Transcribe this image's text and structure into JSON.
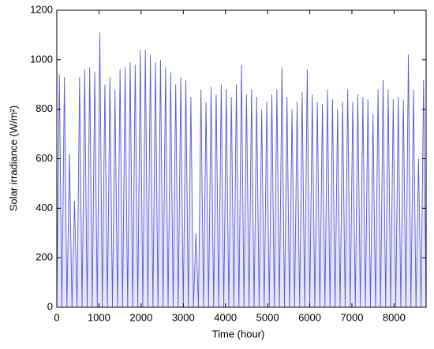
{
  "chart_data": {
    "type": "line",
    "xlabel": "Time (hour)",
    "ylabel": "Solar irradiance (W/m²)",
    "x": [
      0,
      60,
      120,
      180,
      240,
      300,
      360,
      420,
      480,
      540,
      600,
      660,
      720,
      780,
      840,
      900,
      960,
      1020,
      1080,
      1140,
      1200,
      1260,
      1320,
      1380,
      1440,
      1500,
      1560,
      1620,
      1680,
      1740,
      1800,
      1860,
      1920,
      1980,
      2040,
      2100,
      2160,
      2220,
      2280,
      2340,
      2400,
      2460,
      2520,
      2580,
      2640,
      2700,
      2760,
      2820,
      2880,
      2940,
      3000,
      3060,
      3120,
      3180,
      3240,
      3300,
      3360,
      3420,
      3480,
      3540,
      3600,
      3660,
      3720,
      3780,
      3840,
      3900,
      3960,
      4020,
      4080,
      4140,
      4200,
      4260,
      4320,
      4380,
      4440,
      4500,
      4560,
      4620,
      4680,
      4740,
      4800,
      4860,
      4920,
      4980,
      5040,
      5100,
      5160,
      5220,
      5280,
      5340,
      5400,
      5460,
      5520,
      5580,
      5640,
      5700,
      5760,
      5820,
      5880,
      5940,
      6000,
      6060,
      6120,
      6180,
      6240,
      6300,
      6360,
      6420,
      6480,
      6540,
      6600,
      6660,
      6720,
      6780,
      6840,
      6900,
      6960,
      7020,
      7080,
      7140,
      7200,
      7260,
      7320,
      7380,
      7440,
      7500,
      7560,
      7620,
      7680,
      7740,
      7800,
      7860,
      7920,
      7980,
      8040,
      8100,
      8160,
      8220,
      8280,
      8340,
      8400,
      8460,
      8520,
      8580,
      8640,
      8700,
      8760
    ],
    "series": [
      {
        "color": "#5a5ad8",
        "values": [
          0,
          940,
          0,
          930,
          0,
          620,
          0,
          430,
          0,
          930,
          0,
          960,
          0,
          970,
          0,
          950,
          0,
          1110,
          0,
          900,
          0,
          930,
          0,
          880,
          0,
          960,
          0,
          970,
          0,
          990,
          0,
          980,
          0,
          1040,
          0,
          1040,
          0,
          1020,
          0,
          990,
          0,
          1000,
          0,
          970,
          0,
          950,
          0,
          900,
          0,
          930,
          0,
          920,
          0,
          850,
          0,
          300,
          0,
          880,
          0,
          830,
          0,
          890,
          0,
          860,
          0,
          900,
          0,
          880,
          0,
          850,
          0,
          900,
          0,
          980,
          0,
          860,
          0,
          880,
          0,
          850,
          0,
          800,
          0,
          830,
          0,
          860,
          0,
          880,
          0,
          970,
          0,
          850,
          0,
          800,
          0,
          830,
          0,
          870,
          0,
          960,
          0,
          860,
          0,
          830,
          0,
          820,
          0,
          880,
          0,
          840,
          0,
          800,
          0,
          830,
          0,
          880,
          0,
          830,
          0,
          860,
          0,
          850,
          0,
          840,
          0,
          780,
          0,
          880,
          0,
          920,
          0,
          880,
          0,
          840,
          0,
          850,
          0,
          840,
          0,
          1020,
          0,
          880,
          0,
          600,
          0,
          920,
          0
        ]
      }
    ],
    "xlim": [
      0,
      8760
    ],
    "ylim": [
      0,
      1200
    ],
    "xticks": [
      0,
      1000,
      2000,
      3000,
      4000,
      5000,
      6000,
      7000,
      8000
    ],
    "yticks": [
      0,
      200,
      400,
      600,
      800,
      1000,
      1200
    ]
  }
}
